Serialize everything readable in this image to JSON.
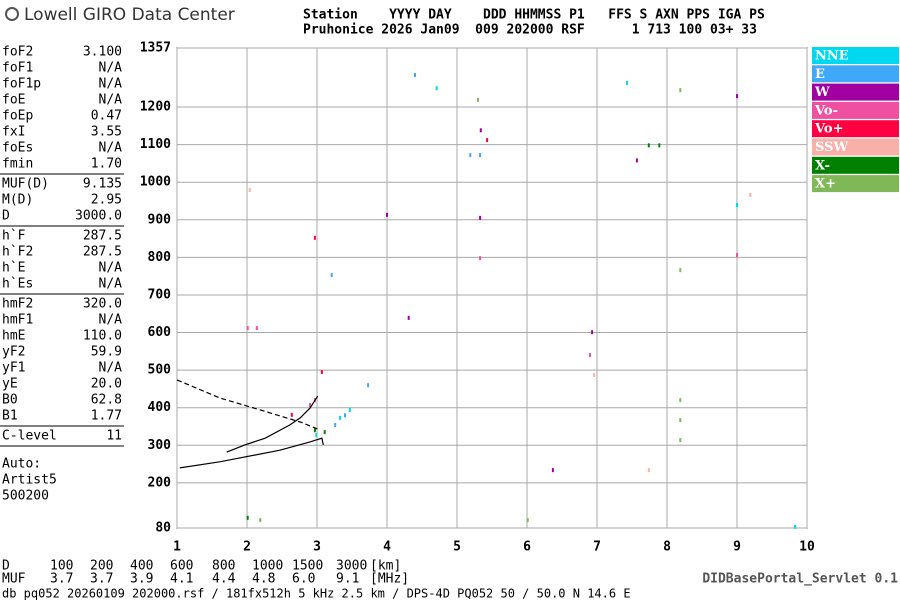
{
  "header": {
    "brand": "Lowell GIRO Data Center",
    "line1": "Station    YYYY DAY    DDD HHMMSS P1   FFS S AXN PPS IGA PS",
    "line2": "Pruhonice 2026 Jan09  009 202000 RSF      1 713 100 03+ 33"
  },
  "params": [
    [
      [
        "foF2",
        "3.100"
      ],
      [
        "foF1",
        "N/A"
      ],
      [
        "foF1p",
        "N/A"
      ],
      [
        "foE",
        "N/A"
      ],
      [
        "foEp",
        "0.47"
      ],
      [
        "fxI",
        "3.55"
      ],
      [
        "foEs",
        "N/A"
      ],
      [
        "fmin",
        "1.70"
      ]
    ],
    [
      [
        "MUF(D)",
        "9.135"
      ],
      [
        "M(D)",
        "2.95"
      ],
      [
        "D",
        "3000.0"
      ]
    ],
    [
      [
        "h`F",
        "287.5"
      ],
      [
        "h`F2",
        "287.5"
      ],
      [
        "h`E",
        "N/A"
      ],
      [
        "h`Es",
        "N/A"
      ]
    ],
    [
      [
        "hmF2",
        "320.0"
      ],
      [
        "hmF1",
        "N/A"
      ],
      [
        "hmE",
        "110.0"
      ],
      [
        "yF2",
        "59.9"
      ],
      [
        "yF1",
        "N/A"
      ],
      [
        "yE",
        "20.0"
      ],
      [
        "B0",
        "62.8"
      ],
      [
        "B1",
        "1.77"
      ]
    ],
    [
      [
        "C-level",
        "11"
      ]
    ]
  ],
  "auto": [
    "Auto:",
    "Artist5",
    "500200"
  ],
  "footer": {
    "d_label": "D",
    "d_values": [
      "100",
      "200",
      "400",
      "600",
      "800",
      "1000",
      "1500",
      "3000",
      "[km]"
    ],
    "muf_label": "MUF",
    "muf_values": [
      "3.7",
      "3.7",
      "3.9",
      "4.1",
      "4.4",
      "4.8",
      "6.0",
      "9.1",
      "[MHz]"
    ],
    "info": "db pq052 20260109 202000.rsf / 181fx512h 5 kHz 2.5 km / DPS-4D PQ052 50 / 50.0 N 14.6 E",
    "servlet": "DIDBasePortal_Servlet 0.1"
  },
  "chart_data": {
    "type": "scatter",
    "xlim": [
      1,
      10
    ],
    "ylim": [
      80,
      1357
    ],
    "xticks": [
      1,
      2,
      3,
      4,
      5,
      6,
      7,
      8,
      9,
      10
    ],
    "yticks": [
      80,
      200,
      300,
      400,
      500,
      600,
      700,
      800,
      900,
      1000,
      1100,
      1200,
      1357
    ],
    "grid": true,
    "series": [
      {
        "name": "NNE",
        "color": "#00d8f0",
        "x": [
          2.99,
          3.33,
          3.47,
          4.71,
          7.43,
          9.0,
          9.83
        ],
        "y": [
          327,
          373,
          394,
          1250,
          1264,
          939,
          83
        ]
      },
      {
        "name": "E",
        "color": "#40a8f8",
        "x": [
          3.26,
          3.4,
          5.19,
          5.33,
          3.21,
          4.4,
          3.73
        ],
        "y": [
          354,
          380,
          1072,
          1072,
          753,
          1285,
          460
        ]
      },
      {
        "name": "W",
        "color": "#a000a0",
        "x": [
          4.0,
          4.31,
          5.34,
          5.33,
          7.57,
          6.93,
          9.0,
          6.37
        ],
        "y": [
          913,
          639,
          1138,
          905,
          1058,
          601,
          1229,
          234
        ]
      },
      {
        "name": "Vo-",
        "color": "#f050a0",
        "x": [
          2.9,
          2.97,
          5.33,
          6.9,
          9.0,
          2.01,
          2.14
        ],
        "y": [
          407,
          420,
          798,
          540,
          806,
          612,
          612
        ]
      },
      {
        "name": "Vo+",
        "color": "#ff0040",
        "x": [
          3.07,
          2.64,
          2.97,
          5.43
        ],
        "y": [
          495,
          381,
          852,
          1112
        ]
      },
      {
        "name": "SSW",
        "color": "#f8b0a8",
        "x": [
          2.04,
          6.96,
          7.74,
          9.19
        ],
        "y": [
          979,
          487,
          234,
          966
        ]
      },
      {
        "name": "X-",
        "color": "#008000",
        "x": [
          2.97,
          3.11,
          7.74,
          7.89,
          2.01
        ],
        "y": [
          340,
          335,
          1098,
          1098,
          107
        ]
      },
      {
        "name": "X+",
        "color": "#80b858",
        "x": [
          8.19,
          8.19,
          8.19,
          8.19,
          8.19,
          6.01,
          5.3,
          2.19
        ],
        "y": [
          420,
          367,
          314,
          766,
          1245,
          101,
          1219,
          101
        ]
      }
    ],
    "traces": [
      {
        "style": "solid",
        "x": [
          1.71,
          1.97,
          2.26,
          2.61,
          2.76,
          2.9,
          3.01
        ],
        "y": [
          282,
          301,
          319,
          354,
          373,
          399,
          431
        ]
      },
      {
        "style": "solid",
        "x": [
          1.04,
          1.61,
          2.47,
          2.9,
          3.07,
          3.09
        ],
        "y": [
          240,
          256,
          287,
          309,
          319,
          301
        ]
      },
      {
        "style": "dashed",
        "x": [
          1.0,
          1.61,
          2.19,
          2.76,
          3.04
        ],
        "y": [
          474,
          426,
          394,
          362,
          341
        ]
      }
    ]
  }
}
